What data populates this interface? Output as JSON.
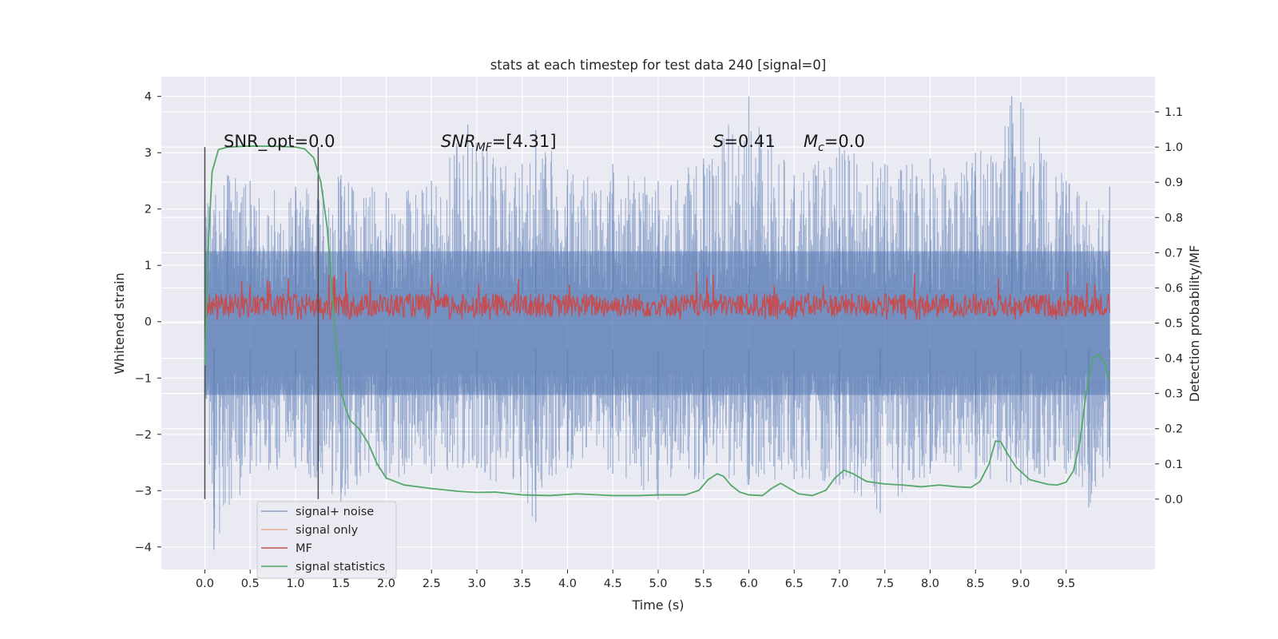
{
  "chart_data": {
    "type": "line",
    "title": "stats at each timestep for test data 240 [signal=0]",
    "xlabel": "Time (s)",
    "ylabel": "Whitened strain",
    "y2label": "Detection probability/MF",
    "xlim": [
      -0.48,
      10.48
    ],
    "ylim": [
      -4.4,
      4.35
    ],
    "y2lim": [
      -0.2,
      1.2
    ],
    "xticks": [
      0.0,
      0.5,
      1.0,
      1.5,
      2.0,
      2.5,
      3.0,
      3.5,
      4.0,
      4.5,
      5.0,
      5.5,
      6.0,
      6.5,
      7.0,
      7.5,
      8.0,
      8.5,
      9.0,
      9.5
    ],
    "xtick_labels": [
      "0.0",
      "0.5",
      "1.0",
      "1.5",
      "2.0",
      "2.5",
      "3.0",
      "3.5",
      "4.0",
      "4.5",
      "5.0",
      "5.5",
      "6.0",
      "6.5",
      "7.0",
      "7.5",
      "8.0",
      "8.5",
      "9.0",
      "9.5"
    ],
    "yticks": [
      -4,
      -3,
      -2,
      -1,
      0,
      1,
      2,
      3,
      4
    ],
    "ytick_labels": [
      "−4",
      "−3",
      "−2",
      "−1",
      "0",
      "1",
      "2",
      "3",
      "4"
    ],
    "y2ticks": [
      0.0,
      0.1,
      0.2,
      0.3,
      0.4,
      0.5,
      0.6,
      0.7,
      0.8,
      0.9,
      1.0,
      1.1
    ],
    "y2tick_labels": [
      "0.0",
      "0.1",
      "0.2",
      "0.3",
      "0.4",
      "0.5",
      "0.6",
      "0.7",
      "0.8",
      "0.9",
      "1.0",
      "1.1"
    ],
    "grid": true,
    "legend_placement": "lower-left",
    "colors": {
      "background": "#eaeaf2",
      "grid": "#ffffff",
      "signal_noise": "#4c72b0",
      "signal_only": "#dd8452",
      "mf": "#c44e52",
      "stats": "#55a868",
      "marker": "#4d4d4d"
    },
    "legend": [
      {
        "label": "signal+ noise",
        "color": "#4c72b0"
      },
      {
        "label": "signal only",
        "color": "#dd8452"
      },
      {
        "label": "MF",
        "color": "#c44e52"
      },
      {
        "label": "signal statistics",
        "color": "#55a868"
      }
    ],
    "annotations": {
      "snr_opt": "SNR_opt=0.0",
      "snr_mf_base": "SNR",
      "snr_mf_sub": "MF",
      "snr_mf_rest": "=[4.31]",
      "s_italic": "S",
      "s_rest": "=0.41",
      "mc_italic": "M",
      "mc_sub": "c",
      "mc_rest": "=0.0"
    },
    "vertical_markers": [
      {
        "x": 0.0,
        "y": [
          -3.15,
          3.1
        ]
      },
      {
        "x": 1.25,
        "y": [
          -3.15,
          3.1
        ]
      }
    ],
    "series": [
      {
        "name": "signal+ noise",
        "x_range": [
          0.0,
          9.98
        ],
        "upper_envelope": [
          [
            0.0,
            2.1
          ],
          [
            0.25,
            2.6
          ],
          [
            0.5,
            2.5
          ],
          [
            1.0,
            2.4
          ],
          [
            1.5,
            2.6
          ],
          [
            2.0,
            2.3
          ],
          [
            2.5,
            2.5
          ],
          [
            2.9,
            3.5
          ],
          [
            3.5,
            2.8
          ],
          [
            3.65,
            3.4
          ],
          [
            4.0,
            2.7
          ],
          [
            4.5,
            2.8
          ],
          [
            5.0,
            2.5
          ],
          [
            5.5,
            2.9
          ],
          [
            6.0,
            4.0
          ],
          [
            6.5,
            2.6
          ],
          [
            7.0,
            3.1
          ],
          [
            7.5,
            2.8
          ],
          [
            8.0,
            2.9
          ],
          [
            8.5,
            3.0
          ],
          [
            8.9,
            4.0
          ],
          [
            9.0,
            3.9
          ],
          [
            9.5,
            2.5
          ],
          [
            9.98,
            2.4
          ]
        ],
        "lower_envelope": [
          [
            0.0,
            -1.7
          ],
          [
            0.1,
            -4.05
          ],
          [
            0.5,
            -2.7
          ],
          [
            1.0,
            -2.6
          ],
          [
            1.5,
            -3.2
          ],
          [
            2.0,
            -2.8
          ],
          [
            2.5,
            -2.7
          ],
          [
            3.0,
            -2.6
          ],
          [
            3.65,
            -3.55
          ],
          [
            4.0,
            -2.6
          ],
          [
            4.5,
            -2.7
          ],
          [
            5.0,
            -3.15
          ],
          [
            5.5,
            -2.8
          ],
          [
            6.0,
            -2.9
          ],
          [
            6.5,
            -2.8
          ],
          [
            7.0,
            -2.9
          ],
          [
            7.45,
            -3.4
          ],
          [
            8.0,
            -2.7
          ],
          [
            8.5,
            -2.8
          ],
          [
            9.0,
            -2.9
          ],
          [
            9.5,
            -2.7
          ],
          [
            9.75,
            -3.3
          ],
          [
            9.98,
            -2.6
          ]
        ]
      },
      {
        "name": "MF",
        "x_range": [
          0.0,
          9.98
        ],
        "center": 0.29,
        "amplitude": 0.21,
        "max": 0.93,
        "min": 0.03
      },
      {
        "name": "signal statistics",
        "axis": "right",
        "points": [
          [
            0.0,
            0.38
          ],
          [
            0.03,
            0.68
          ],
          [
            0.08,
            0.93
          ],
          [
            0.15,
            0.993
          ],
          [
            0.25,
            1.0
          ],
          [
            0.5,
            1.003
          ],
          [
            0.8,
            1.002
          ],
          [
            1.0,
            1.0
          ],
          [
            1.1,
            0.995
          ],
          [
            1.2,
            0.97
          ],
          [
            1.28,
            0.9
          ],
          [
            1.35,
            0.77
          ],
          [
            1.4,
            0.6
          ],
          [
            1.45,
            0.43
          ],
          [
            1.5,
            0.31
          ],
          [
            1.55,
            0.26
          ],
          [
            1.6,
            0.225
          ],
          [
            1.7,
            0.2
          ],
          [
            1.8,
            0.16
          ],
          [
            1.9,
            0.1
          ],
          [
            2.0,
            0.06
          ],
          [
            2.2,
            0.04
          ],
          [
            2.5,
            0.03
          ],
          [
            2.8,
            0.022
          ],
          [
            3.0,
            0.019
          ],
          [
            3.2,
            0.02
          ],
          [
            3.5,
            0.012
          ],
          [
            3.8,
            0.01
          ],
          [
            4.1,
            0.015
          ],
          [
            4.5,
            0.01
          ],
          [
            4.8,
            0.01
          ],
          [
            5.0,
            0.012
          ],
          [
            5.3,
            0.012
          ],
          [
            5.45,
            0.025
          ],
          [
            5.55,
            0.055
          ],
          [
            5.65,
            0.072
          ],
          [
            5.72,
            0.065
          ],
          [
            5.8,
            0.04
          ],
          [
            5.9,
            0.02
          ],
          [
            6.0,
            0.012
          ],
          [
            6.15,
            0.01
          ],
          [
            6.25,
            0.03
          ],
          [
            6.35,
            0.045
          ],
          [
            6.45,
            0.03
          ],
          [
            6.55,
            0.015
          ],
          [
            6.7,
            0.01
          ],
          [
            6.85,
            0.025
          ],
          [
            6.95,
            0.06
          ],
          [
            7.05,
            0.082
          ],
          [
            7.15,
            0.072
          ],
          [
            7.3,
            0.05
          ],
          [
            7.5,
            0.043
          ],
          [
            7.7,
            0.04
          ],
          [
            7.9,
            0.035
          ],
          [
            8.1,
            0.04
          ],
          [
            8.3,
            0.035
          ],
          [
            8.45,
            0.033
          ],
          [
            8.55,
            0.05
          ],
          [
            8.65,
            0.1
          ],
          [
            8.72,
            0.165
          ],
          [
            8.78,
            0.163
          ],
          [
            8.85,
            0.13
          ],
          [
            8.95,
            0.09
          ],
          [
            9.1,
            0.055
          ],
          [
            9.3,
            0.042
          ],
          [
            9.4,
            0.04
          ],
          [
            9.5,
            0.048
          ],
          [
            9.58,
            0.08
          ],
          [
            9.65,
            0.16
          ],
          [
            9.72,
            0.3
          ],
          [
            9.79,
            0.4
          ],
          [
            9.86,
            0.41
          ],
          [
            9.92,
            0.39
          ],
          [
            9.97,
            0.34
          ]
        ]
      }
    ]
  }
}
